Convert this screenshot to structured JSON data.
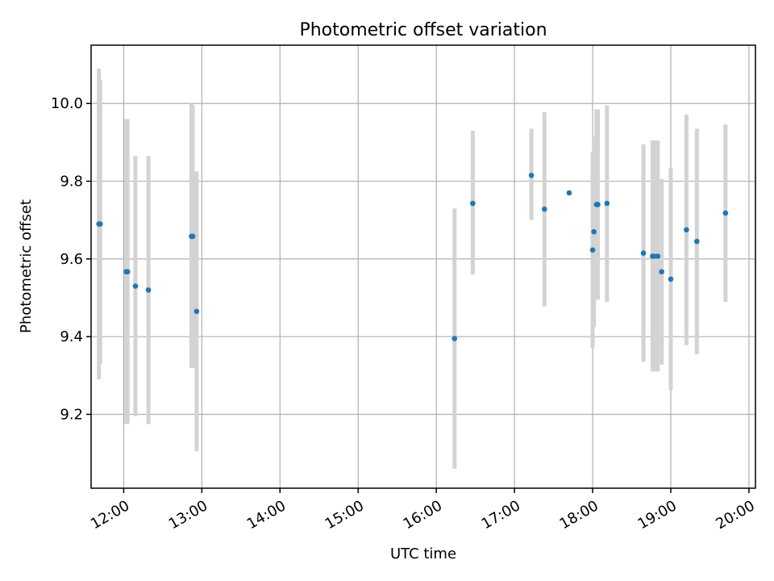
{
  "chart_data": {
    "type": "scatter",
    "title": "Photometric offset variation",
    "xlabel": "UTC time",
    "ylabel": "Photometric offset",
    "xlim": [
      "11:35",
      "20:05"
    ],
    "ylim": [
      9.01,
      10.15
    ],
    "xticks": [
      "12:00",
      "13:00",
      "14:00",
      "15:00",
      "16:00",
      "17:00",
      "18:00",
      "19:00",
      "20:00"
    ],
    "yticks": [
      "9.2",
      "9.4",
      "9.6",
      "9.8",
      "10.0"
    ],
    "grid": true,
    "colors": {
      "point": "#1f77b4",
      "errorbar": "#d3d3d3"
    },
    "points": [
      {
        "x": "11:41",
        "y": 9.69,
        "ylow": 9.29,
        "yhigh": 10.09
      },
      {
        "x": "11:42",
        "y": 9.69,
        "ylow": 9.33,
        "yhigh": 10.06
      },
      {
        "x": "12:02",
        "y": 9.567,
        "ylow": 9.175,
        "yhigh": 9.96
      },
      {
        "x": "12:03",
        "y": 9.567,
        "ylow": 9.175,
        "yhigh": 9.96
      },
      {
        "x": "12:09",
        "y": 9.53,
        "ylow": 9.195,
        "yhigh": 9.865
      },
      {
        "x": "12:19",
        "y": 9.52,
        "ylow": 9.175,
        "yhigh": 9.865
      },
      {
        "x": "12:52",
        "y": 9.658,
        "ylow": 9.32,
        "yhigh": 10.0
      },
      {
        "x": "12:53",
        "y": 9.658,
        "ylow": 9.32,
        "yhigh": 9.995
      },
      {
        "x": "12:56",
        "y": 9.465,
        "ylow": 9.105,
        "yhigh": 9.825
      },
      {
        "x": "16:14",
        "y": 9.395,
        "ylow": 9.06,
        "yhigh": 9.73
      },
      {
        "x": "16:28",
        "y": 9.743,
        "ylow": 9.56,
        "yhigh": 9.93
      },
      {
        "x": "17:13",
        "y": 9.815,
        "ylow": 9.7,
        "yhigh": 9.935
      },
      {
        "x": "17:23",
        "y": 9.728,
        "ylow": 9.478,
        "yhigh": 9.978
      },
      {
        "x": "17:42",
        "y": 9.77,
        "ylow": 9.77,
        "yhigh": 9.77
      },
      {
        "x": "18:00",
        "y": 9.623,
        "ylow": 9.37,
        "yhigh": 9.875
      },
      {
        "x": "18:01",
        "y": 9.67,
        "ylow": 9.425,
        "yhigh": 9.915
      },
      {
        "x": "18:03",
        "y": 9.74,
        "ylow": 9.495,
        "yhigh": 9.985
      },
      {
        "x": "18:04",
        "y": 9.74,
        "ylow": 9.495,
        "yhigh": 9.985
      },
      {
        "x": "18:11",
        "y": 9.743,
        "ylow": 9.49,
        "yhigh": 9.995
      },
      {
        "x": "18:39",
        "y": 9.615,
        "ylow": 9.335,
        "yhigh": 9.895
      },
      {
        "x": "18:46",
        "y": 9.607,
        "ylow": 9.31,
        "yhigh": 9.905
      },
      {
        "x": "18:47",
        "y": 9.607,
        "ylow": 9.31,
        "yhigh": 9.905
      },
      {
        "x": "18:50",
        "y": 9.607,
        "ylow": 9.31,
        "yhigh": 9.905
      },
      {
        "x": "18:53",
        "y": 9.567,
        "ylow": 9.328,
        "yhigh": 9.806
      },
      {
        "x": "19:00",
        "y": 9.548,
        "ylow": 9.262,
        "yhigh": 9.834
      },
      {
        "x": "19:12",
        "y": 9.675,
        "ylow": 9.378,
        "yhigh": 9.972
      },
      {
        "x": "19:20",
        "y": 9.645,
        "ylow": 9.355,
        "yhigh": 9.935
      },
      {
        "x": "19:42",
        "y": 9.718,
        "ylow": 9.49,
        "yhigh": 9.946
      }
    ]
  }
}
